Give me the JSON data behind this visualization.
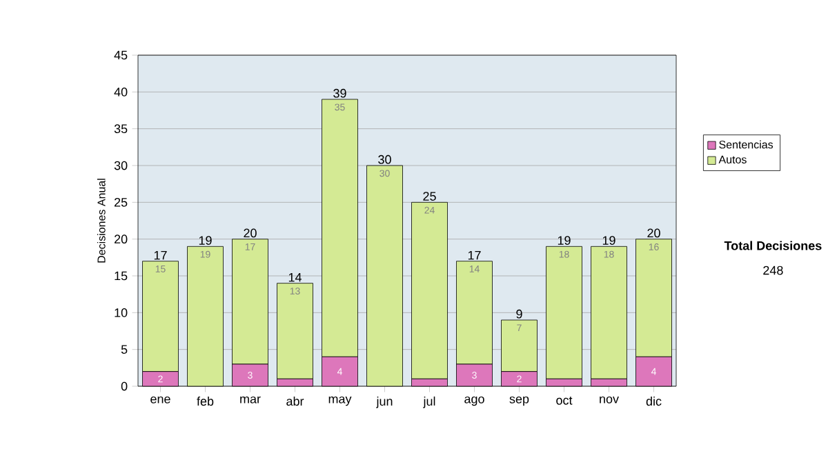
{
  "chart_data": {
    "type": "bar",
    "stacked": true,
    "ylabel": "Decisiones Anual",
    "categories": [
      "ene",
      "feb",
      "mar",
      "abr",
      "may",
      "jun",
      "jul",
      "ago",
      "sep",
      "oct",
      "nov",
      "dic"
    ],
    "series": [
      {
        "name": "Sentencias",
        "color": "#dd77bb",
        "values": [
          2,
          0,
          3,
          1,
          4,
          0,
          1,
          3,
          2,
          1,
          1,
          4
        ],
        "value_labels": [
          "2",
          null,
          "3",
          null,
          "4",
          null,
          null,
          "3",
          "2",
          null,
          null,
          "4"
        ]
      },
      {
        "name": "Autos",
        "color": "#d4ea94",
        "values": [
          15,
          19,
          17,
          13,
          35,
          30,
          24,
          14,
          7,
          18,
          18,
          16
        ],
        "value_labels": [
          "15",
          "19",
          "17",
          "13",
          "35",
          "30",
          "24",
          "14",
          "7",
          "18",
          "18",
          "16"
        ]
      }
    ],
    "totals": [
      "17",
      "19",
      "20",
      "14",
      "39",
      "30",
      "25",
      "17",
      "9",
      "19",
      "19",
      "20"
    ],
    "ylim": [
      0,
      45
    ],
    "yticks": [
      0,
      5,
      10,
      15,
      20,
      25,
      30,
      35,
      40,
      45
    ],
    "grid": "y",
    "legend": "right",
    "annotations": [
      "Total Decisiones",
      "248"
    ]
  }
}
